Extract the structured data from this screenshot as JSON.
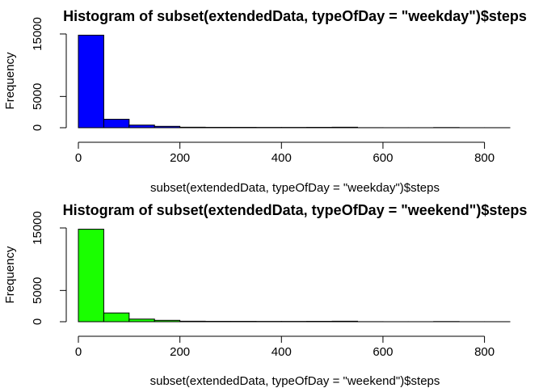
{
  "chart_data": [
    {
      "type": "bar",
      "title": "Histogram of subset(extendedData, typeOfDay = \"weekday\")$steps",
      "xlabel": "subset(extendedData, typeOfDay = \"weekday\")$steps",
      "ylabel": "Frequency",
      "fill_color": "#0000ff",
      "bin_width": 50,
      "bin_starts": [
        0,
        50,
        100,
        150,
        200,
        250,
        300,
        350,
        400,
        450,
        500,
        550,
        600,
        650,
        700,
        750,
        800
      ],
      "values": [
        14800,
        1350,
        420,
        220,
        80,
        60,
        60,
        50,
        50,
        60,
        80,
        10,
        5,
        5,
        30,
        5,
        5
      ],
      "xlim": [
        0,
        850
      ],
      "ylim": [
        0,
        15000
      ],
      "x_ticks": [
        0,
        200,
        400,
        600,
        800
      ],
      "y_ticks": [
        0,
        5000,
        15000
      ]
    },
    {
      "type": "bar",
      "title": "Histogram of subset(extendedData, typeOfDay = \"weekend\")$steps",
      "xlabel": "subset(extendedData, typeOfDay = \"weekend\")$steps",
      "ylabel": "Frequency",
      "fill_color": "#1aff00",
      "bin_width": 50,
      "bin_starts": [
        0,
        50,
        100,
        150,
        200,
        250,
        300,
        350,
        400,
        450,
        500,
        550,
        600,
        650,
        700,
        750,
        800
      ],
      "values": [
        14800,
        1400,
        420,
        220,
        80,
        60,
        60,
        50,
        50,
        60,
        80,
        10,
        5,
        5,
        30,
        5,
        5
      ],
      "xlim": [
        0,
        850
      ],
      "ylim": [
        0,
        15000
      ],
      "x_ticks": [
        0,
        200,
        400,
        600,
        800
      ],
      "y_ticks": [
        0,
        5000,
        15000
      ]
    }
  ]
}
